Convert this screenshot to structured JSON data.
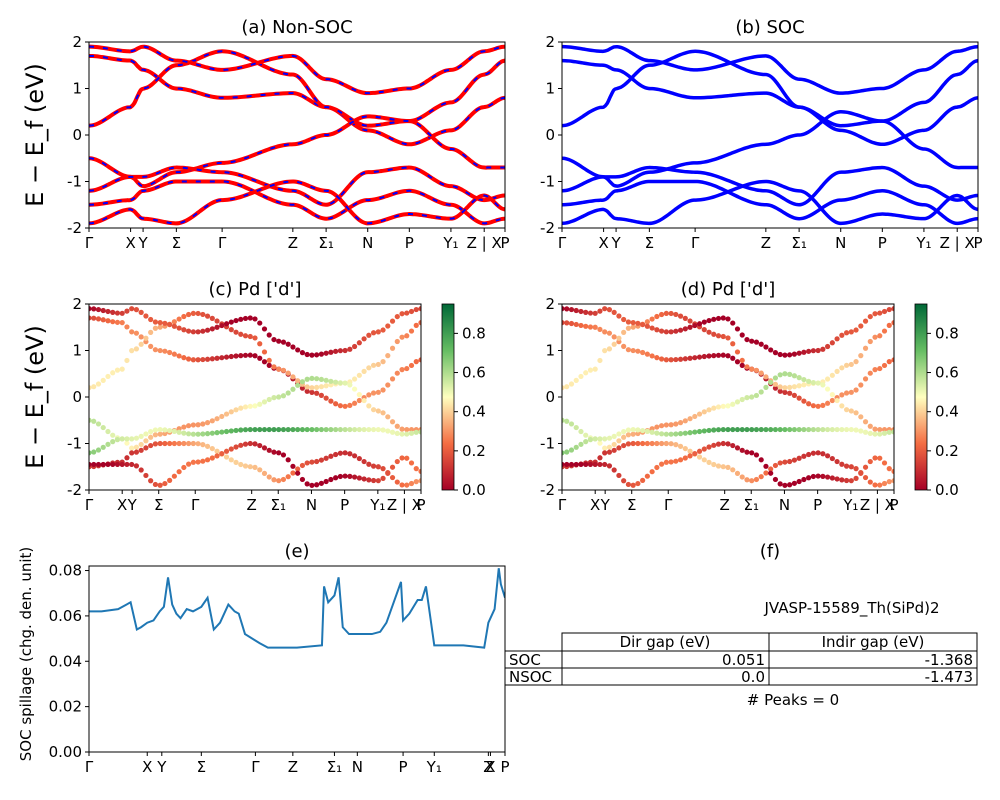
{
  "chart_data": [
    {
      "panel": "a",
      "type": "line",
      "title": "(a) Non-SOC",
      "ylabel": "E − E_f (eV)",
      "ylim": [
        -2,
        2
      ],
      "yticks": [
        -2,
        -1,
        0,
        1,
        2
      ],
      "kpath": [
        "Γ",
        "X",
        "Y",
        "Σ",
        "Γ",
        "Z",
        "Σ₁",
        "N",
        "P",
        "Y₁",
        "Z | X",
        "P"
      ],
      "kpos": [
        0,
        0.1,
        0.13,
        0.21,
        0.32,
        0.49,
        0.57,
        0.67,
        0.77,
        0.87,
        0.95,
        1.0
      ],
      "series": [
        {
          "values": [
            1.7,
            1.6,
            1.4,
            1.0,
            0.8,
            0.9,
            0.6,
            0.1,
            -0.2,
            0.1,
            0.6,
            0.8
          ]
        },
        {
          "values": [
            0.2,
            0.6,
            1.0,
            1.5,
            1.8,
            1.3,
            0.6,
            0.2,
            0.3,
            0.7,
            1.3,
            1.6
          ]
        },
        {
          "values": [
            -0.5,
            -0.9,
            -1.1,
            -0.8,
            -0.6,
            -0.2,
            0.0,
            0.4,
            0.3,
            -0.3,
            -0.7,
            -0.7
          ]
        },
        {
          "values": [
            -1.2,
            -0.9,
            -0.9,
            -0.7,
            -0.8,
            -1.2,
            -1.5,
            -0.8,
            -0.7,
            -1.1,
            -1.4,
            -1.3
          ]
        },
        {
          "values": [
            -1.5,
            -1.4,
            -1.2,
            -1.0,
            -1.0,
            -1.5,
            -1.8,
            -1.4,
            -1.2,
            -1.5,
            -1.9,
            -1.8
          ]
        },
        {
          "values": [
            -1.9,
            -1.6,
            -1.8,
            -1.9,
            -1.4,
            -1.0,
            -1.2,
            -1.9,
            -1.7,
            -1.8,
            -1.3,
            -1.6
          ]
        },
        {
          "values": [
            1.9,
            1.8,
            1.9,
            1.6,
            1.4,
            1.7,
            1.2,
            0.9,
            1.0,
            1.4,
            1.8,
            1.9
          ]
        }
      ],
      "colors": {
        "line": "#ff0000",
        "dash": "#0000ff"
      }
    },
    {
      "panel": "b",
      "type": "line",
      "title": "(b) SOC",
      "ylim": [
        -2,
        2
      ],
      "yticks": [
        -2,
        -1,
        0,
        1,
        2
      ],
      "kpath": [
        "Γ",
        "X",
        "Y",
        "Σ",
        "Γ",
        "Z",
        "Σ₁",
        "N",
        "P",
        "Y₁",
        "Z | X",
        "P"
      ],
      "kpos": [
        0,
        0.1,
        0.13,
        0.21,
        0.32,
        0.49,
        0.57,
        0.67,
        0.77,
        0.87,
        0.95,
        1.0
      ],
      "series": [
        {
          "values": [
            1.6,
            1.5,
            1.4,
            1.0,
            0.8,
            0.9,
            0.6,
            0.1,
            -0.2,
            0.1,
            0.6,
            0.8
          ]
        },
        {
          "values": [
            0.2,
            0.6,
            1.0,
            1.5,
            1.8,
            1.3,
            0.6,
            0.2,
            0.3,
            0.7,
            1.3,
            1.6
          ]
        },
        {
          "values": [
            -0.5,
            -0.9,
            -1.1,
            -0.8,
            -0.6,
            -0.2,
            0.0,
            0.5,
            0.3,
            -0.3,
            -0.7,
            -0.7
          ]
        },
        {
          "values": [
            -1.2,
            -0.9,
            -0.9,
            -0.7,
            -0.8,
            -1.2,
            -1.5,
            -0.8,
            -0.7,
            -1.1,
            -1.4,
            -1.3
          ]
        },
        {
          "values": [
            -1.5,
            -1.4,
            -1.2,
            -1.0,
            -1.0,
            -1.5,
            -1.8,
            -1.4,
            -1.2,
            -1.5,
            -1.9,
            -1.8
          ]
        },
        {
          "values": [
            -1.9,
            -1.6,
            -1.8,
            -1.9,
            -1.4,
            -1.0,
            -1.2,
            -1.9,
            -1.7,
            -1.8,
            -1.3,
            -1.6
          ]
        },
        {
          "values": [
            1.9,
            1.8,
            1.9,
            1.6,
            1.4,
            1.7,
            1.2,
            0.9,
            1.0,
            1.4,
            1.8,
            1.9
          ]
        }
      ],
      "colors": {
        "line": "#0000ff"
      }
    },
    {
      "panel": "c",
      "type": "scatter",
      "title": "(c)  Pd ['d']",
      "ylabel": "E − E_f (eV)",
      "ylim": [
        -2,
        2
      ],
      "yticks": [
        -2,
        -1,
        0,
        1,
        2
      ],
      "kpath": [
        "Γ",
        "X",
        "Y",
        "Σ",
        "Γ",
        "Z",
        "Σ₁",
        "N",
        "P",
        "Y₁",
        "Z | X",
        "P"
      ],
      "kpos": [
        0,
        0.1,
        0.13,
        0.21,
        0.32,
        0.49,
        0.57,
        0.67,
        0.77,
        0.87,
        0.95,
        1.0
      ],
      "colorbar": {
        "min": 0.0,
        "max": 0.95,
        "ticks": [
          0.0,
          0.2,
          0.4,
          0.6,
          0.8
        ],
        "colormap": "RdYlGn"
      },
      "bands": [
        {
          "values": [
            1.7,
            1.6,
            1.4,
            1.0,
            0.8,
            0.9,
            0.6,
            0.1,
            -0.2,
            0.1,
            0.6,
            0.8
          ],
          "weight": 0.15
        },
        {
          "values": [
            0.2,
            0.6,
            1.0,
            1.5,
            1.8,
            1.3,
            0.6,
            0.2,
            0.3,
            0.7,
            1.3,
            1.6
          ],
          "weight": 0.3
        },
        {
          "values": [
            -0.5,
            -0.9,
            -1.1,
            -0.8,
            -0.6,
            -0.2,
            0.0,
            0.4,
            0.3,
            -0.3,
            -0.7,
            -0.7
          ],
          "weight": 0.45
        },
        {
          "values": [
            -1.2,
            -0.9,
            -0.9,
            -0.7,
            -0.8,
            -0.7,
            -0.7,
            -0.7,
            -0.7,
            -0.7,
            -0.8,
            -0.75
          ],
          "weight": 0.65
        },
        {
          "values": [
            -1.5,
            -1.4,
            -1.2,
            -1.0,
            -1.0,
            -1.5,
            -1.8,
            -1.4,
            -1.2,
            -1.5,
            -1.9,
            -1.8
          ],
          "weight": 0.25
        },
        {
          "values": [
            -1.45,
            -1.45,
            -1.45,
            -1.9,
            -1.4,
            -1.0,
            -1.2,
            -1.9,
            -1.7,
            -1.8,
            -1.3,
            -1.6
          ],
          "weight": 0.1
        },
        {
          "values": [
            1.9,
            1.8,
            1.9,
            1.6,
            1.4,
            1.7,
            1.2,
            0.9,
            1.0,
            1.4,
            1.8,
            1.9
          ],
          "weight": 0.05
        }
      ]
    },
    {
      "panel": "d",
      "type": "scatter",
      "title": "(d) Pd ['d']",
      "ylim": [
        -2,
        2
      ],
      "yticks": [
        -2,
        -1,
        0,
        1,
        2
      ],
      "kpath": [
        "Γ",
        "X",
        "Y",
        "Σ",
        "Γ",
        "Z",
        "Σ₁",
        "N",
        "P",
        "Y₁",
        "Z | X",
        "P"
      ],
      "kpos": [
        0,
        0.1,
        0.13,
        0.21,
        0.32,
        0.49,
        0.57,
        0.67,
        0.77,
        0.87,
        0.95,
        1.0
      ],
      "colorbar": {
        "min": 0.0,
        "max": 0.95,
        "ticks": [
          0.0,
          0.2,
          0.4,
          0.6,
          0.8
        ],
        "colormap": "RdYlGn"
      },
      "bands": [
        {
          "values": [
            1.6,
            1.5,
            1.4,
            1.0,
            0.8,
            0.9,
            0.6,
            0.1,
            -0.2,
            0.1,
            0.6,
            0.8
          ],
          "weight": 0.15
        },
        {
          "values": [
            0.2,
            0.6,
            1.0,
            1.5,
            1.8,
            1.3,
            0.6,
            0.2,
            0.3,
            0.7,
            1.3,
            1.6
          ],
          "weight": 0.3
        },
        {
          "values": [
            -0.5,
            -0.9,
            -1.1,
            -0.8,
            -0.6,
            -0.2,
            0.0,
            0.5,
            0.3,
            -0.3,
            -0.7,
            -0.7
          ],
          "weight": 0.45
        },
        {
          "values": [
            -1.2,
            -0.9,
            -0.9,
            -0.7,
            -0.8,
            -0.7,
            -0.7,
            -0.7,
            -0.7,
            -0.7,
            -0.8,
            -0.75
          ],
          "weight": 0.65
        },
        {
          "values": [
            -1.5,
            -1.4,
            -1.2,
            -1.0,
            -1.0,
            -1.5,
            -1.8,
            -1.4,
            -1.2,
            -1.5,
            -1.9,
            -1.8
          ],
          "weight": 0.25
        },
        {
          "values": [
            -1.45,
            -1.45,
            -1.45,
            -1.9,
            -1.4,
            -1.0,
            -1.2,
            -1.9,
            -1.7,
            -1.8,
            -1.3,
            -1.6
          ],
          "weight": 0.1
        },
        {
          "values": [
            1.9,
            1.8,
            1.9,
            1.6,
            1.4,
            1.7,
            1.2,
            0.9,
            1.0,
            1.4,
            1.8,
            1.9
          ],
          "weight": 0.05
        }
      ]
    },
    {
      "panel": "e",
      "type": "line",
      "title": "(e)",
      "ylabel": "SOC spillage (chg. den. unit)",
      "ylim": [
        0,
        0.082
      ],
      "yticks": [
        0.0,
        0.02,
        0.04,
        0.06,
        0.08
      ],
      "yticklabels": [
        "0.00",
        "0.02",
        "0.04",
        "0.06",
        "0.08"
      ],
      "kpath": [
        "Γ",
        "X",
        "Y",
        "Σ",
        "Γ",
        "Z",
        "Σ₁",
        "N",
        "P",
        "Y₁",
        "Z",
        "X",
        "P"
      ],
      "kpos": [
        0,
        0.14,
        0.175,
        0.27,
        0.4,
        0.49,
        0.59,
        0.645,
        0.755,
        0.83,
        0.96,
        0.965,
        1.0
      ],
      "x": [
        0,
        0.03,
        0.07,
        0.1,
        0.115,
        0.125,
        0.14,
        0.155,
        0.17,
        0.18,
        0.19,
        0.2,
        0.21,
        0.22,
        0.235,
        0.25,
        0.27,
        0.285,
        0.3,
        0.315,
        0.33,
        0.335,
        0.35,
        0.36,
        0.375,
        0.41,
        0.43,
        0.5,
        0.56,
        0.565,
        0.575,
        0.59,
        0.6,
        0.61,
        0.625,
        0.68,
        0.7,
        0.715,
        0.75,
        0.755,
        0.77,
        0.79,
        0.8,
        0.81,
        0.83,
        0.84,
        0.9,
        0.95,
        0.96,
        0.975,
        0.985,
        0.99,
        1.0
      ],
      "y": [
        0.062,
        0.062,
        0.063,
        0.066,
        0.054,
        0.055,
        0.057,
        0.058,
        0.062,
        0.064,
        0.077,
        0.065,
        0.061,
        0.059,
        0.063,
        0.062,
        0.064,
        0.068,
        0.054,
        0.057,
        0.063,
        0.065,
        0.062,
        0.061,
        0.052,
        0.048,
        0.046,
        0.046,
        0.047,
        0.073,
        0.066,
        0.069,
        0.077,
        0.055,
        0.052,
        0.052,
        0.053,
        0.057,
        0.075,
        0.058,
        0.061,
        0.067,
        0.067,
        0.073,
        0.047,
        0.047,
        0.047,
        0.046,
        0.057,
        0.063,
        0.081,
        0.074,
        0.068
      ],
      "colors": {
        "line": "#1f77b4"
      }
    }
  ],
  "panel_f": {
    "title": "(f)",
    "material": "JVASP-15589_Th(SiPd)2",
    "table": {
      "headers": [
        "",
        "Dir gap (eV)",
        "Indir gap (eV)"
      ],
      "rows": [
        [
          "SOC",
          "0.051",
          "-1.368"
        ],
        [
          "NSOC",
          "0.0",
          "-1.473"
        ]
      ]
    },
    "peaks": "# Peaks = 0"
  }
}
